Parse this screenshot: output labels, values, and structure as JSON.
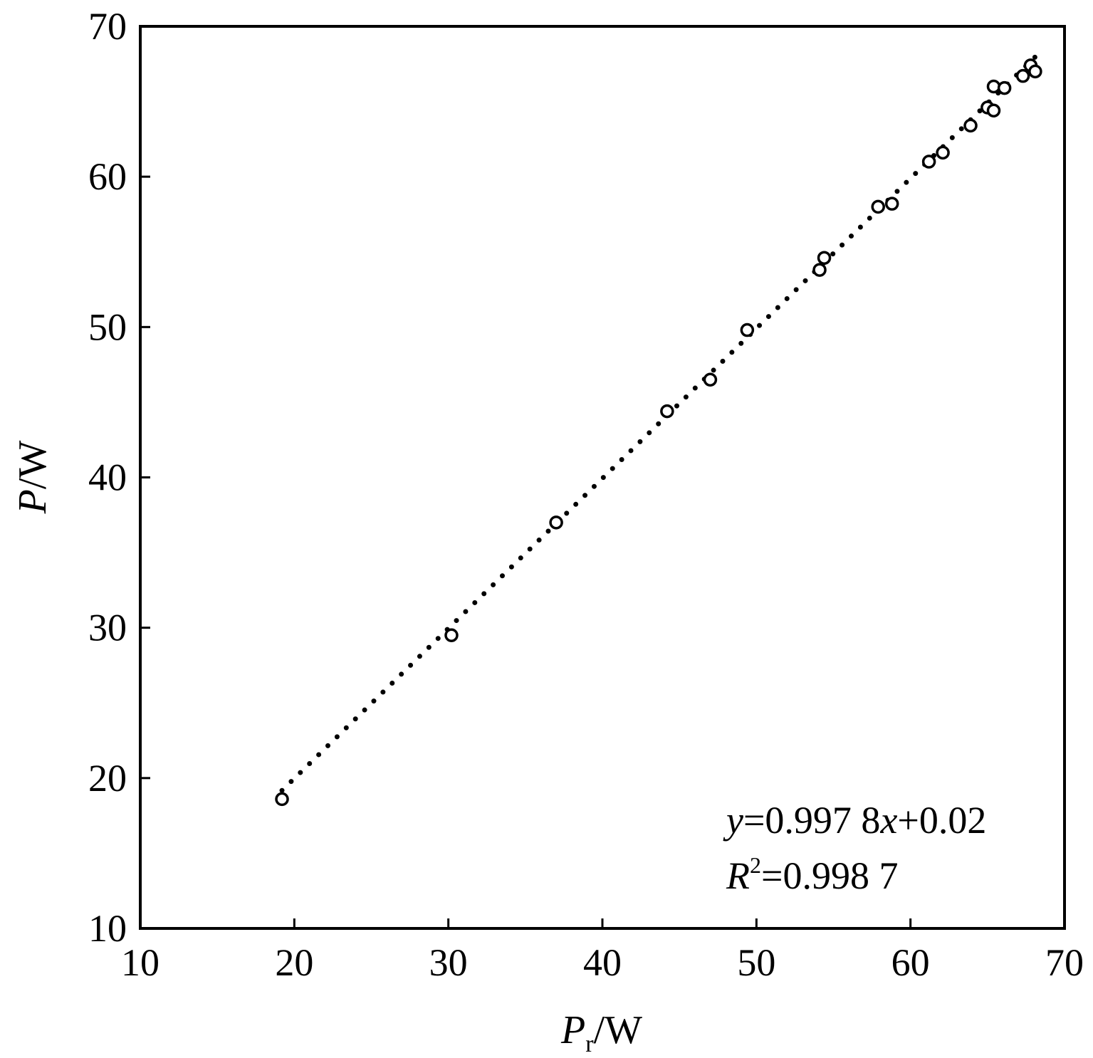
{
  "chart_data": {
    "type": "scatter",
    "xlabel": {
      "main": "P",
      "sub": "r",
      "unit": "/W"
    },
    "ylabel": {
      "main": "P",
      "unit": "/W"
    },
    "xlim": [
      10,
      70
    ],
    "ylim": [
      10,
      70
    ],
    "xticks": [
      "10",
      "20",
      "30",
      "40",
      "50",
      "60",
      "70"
    ],
    "yticks": [
      "10",
      "20",
      "30",
      "40",
      "50",
      "60",
      "70"
    ],
    "grid": false,
    "points": [
      {
        "x": 19.2,
        "y": 18.6
      },
      {
        "x": 30.2,
        "y": 29.5
      },
      {
        "x": 37.0,
        "y": 37.0
      },
      {
        "x": 44.2,
        "y": 44.4
      },
      {
        "x": 47.0,
        "y": 46.5
      },
      {
        "x": 49.4,
        "y": 49.8
      },
      {
        "x": 54.1,
        "y": 53.8
      },
      {
        "x": 54.4,
        "y": 54.6
      },
      {
        "x": 57.9,
        "y": 58.0
      },
      {
        "x": 58.8,
        "y": 58.2
      },
      {
        "x": 61.2,
        "y": 61.0
      },
      {
        "x": 62.1,
        "y": 61.6
      },
      {
        "x": 63.9,
        "y": 63.4
      },
      {
        "x": 65.0,
        "y": 64.6
      },
      {
        "x": 65.4,
        "y": 64.4
      },
      {
        "x": 65.4,
        "y": 66.0
      },
      {
        "x": 66.1,
        "y": 65.9
      },
      {
        "x": 67.3,
        "y": 66.7
      },
      {
        "x": 67.8,
        "y": 67.4
      },
      {
        "x": 68.1,
        "y": 67.0
      }
    ],
    "fit_line": {
      "style": "dotted",
      "slope": 0.9978,
      "intercept": 0.02,
      "x_range": [
        19.2,
        68.1
      ]
    },
    "annotations": {
      "equation": {
        "lhs": "y",
        "eq": "=0.997 8",
        "var": "x",
        "rest": "+0.02"
      },
      "r2": {
        "lhs": "R",
        "sup": "2",
        "rest": "=0.998 7"
      }
    }
  }
}
